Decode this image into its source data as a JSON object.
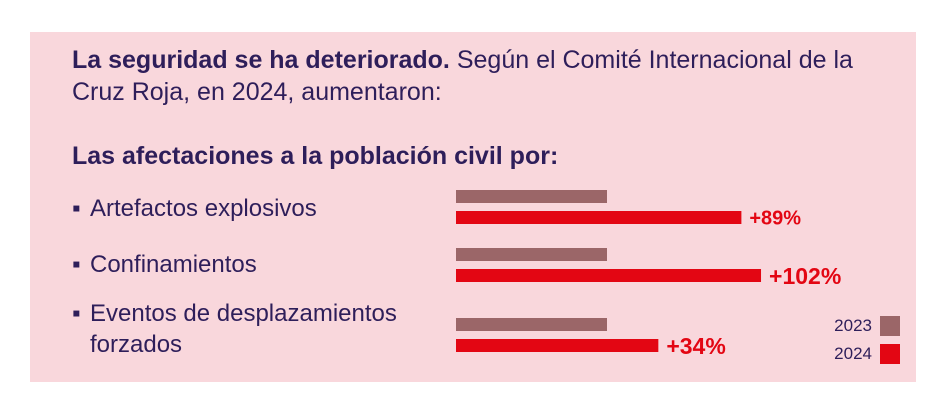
{
  "intro": {
    "bold": "La seguridad se ha deteriorado.",
    "rest": " Según el Comité Internacional de la Cruz Roja, en 2024, aumentaron:"
  },
  "subhead": "Las afectaciones a la población civil por:",
  "colors": {
    "y2023": "#9b6668",
    "y2024": "#e30613",
    "label": "#e30613",
    "text": "#2e1e5a",
    "panel": "#f9d7dc"
  },
  "chart_data": {
    "type": "bar",
    "orientation": "horizontal",
    "categories": [
      "Artefactos explosivos",
      "Confinamientos",
      "Eventos de desplazamientos forzados"
    ],
    "series": [
      {
        "name": "2023",
        "values": [
          100,
          100,
          100
        ]
      },
      {
        "name": "2024",
        "values": [
          189,
          202,
          134
        ]
      }
    ],
    "labels": [
      "+89%",
      "+102%",
      "+34%"
    ],
    "legend_position": "bottom-right"
  }
}
